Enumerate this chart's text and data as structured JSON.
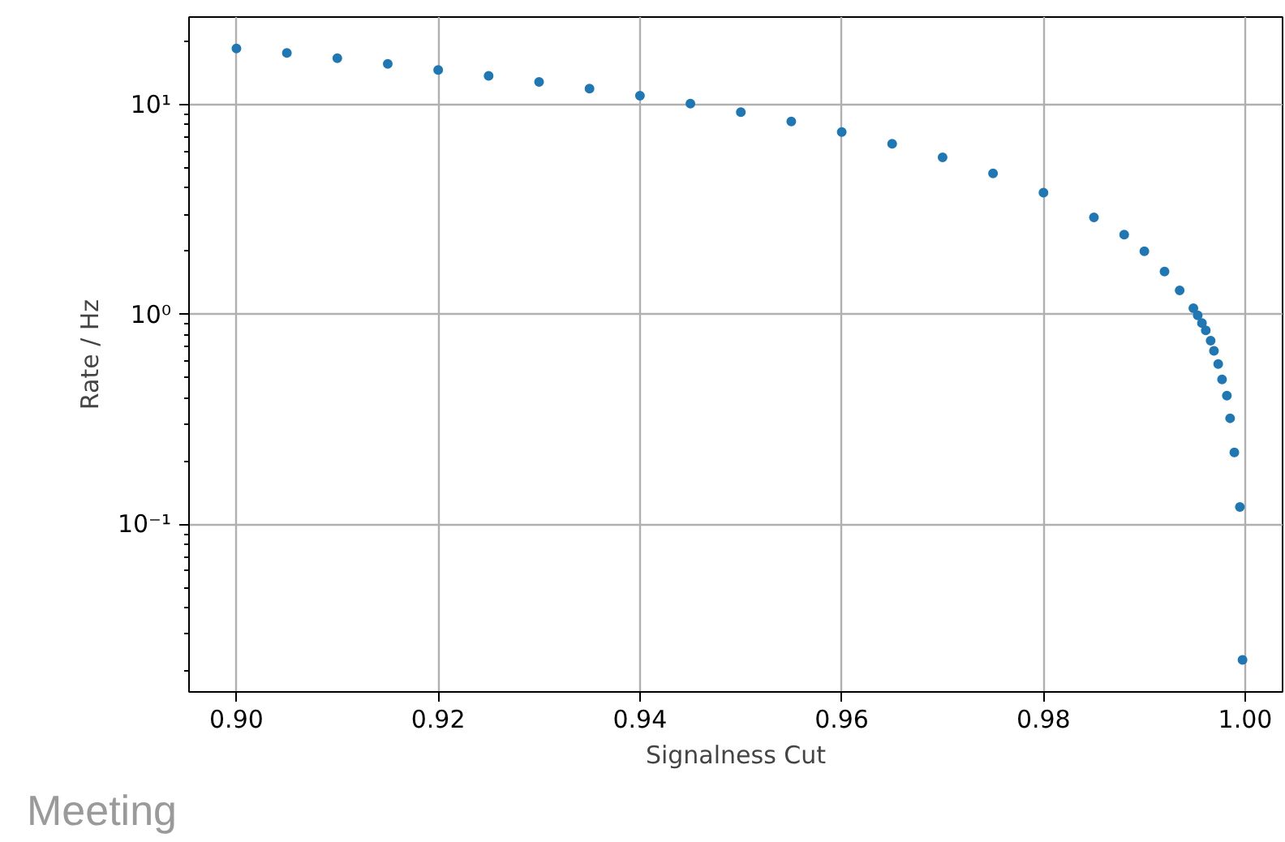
{
  "chart_data": {
    "type": "scatter",
    "xlabel": "Signalness Cut",
    "ylabel": "Rate / Hz",
    "annotations": [
      "Meeting"
    ],
    "x": [
      0.9,
      0.905,
      0.91,
      0.915,
      0.92,
      0.925,
      0.93,
      0.935,
      0.94,
      0.945,
      0.95,
      0.955,
      0.96,
      0.965,
      0.97,
      0.975,
      0.98,
      0.985,
      0.988,
      0.99,
      0.992,
      0.9935,
      0.99486,
      0.99529,
      0.99571,
      0.99609,
      0.99657,
      0.9969,
      0.99732,
      0.9977,
      0.99818,
      0.9985,
      0.99892,
      0.99947,
      0.99973
    ],
    "series": [
      {
        "color": "#1f77b4",
        "values": [
          18.5,
          17.6,
          16.6,
          15.6,
          14.6,
          13.7,
          12.8,
          11.9,
          11.0,
          10.1,
          9.2,
          8.3,
          7.4,
          6.5,
          5.6,
          4.7,
          3.8,
          2.9,
          2.4,
          2.0,
          1.6,
          1.3,
          1.07,
          0.99,
          0.91,
          0.84,
          0.75,
          0.67,
          0.58,
          0.49,
          0.41,
          0.32,
          0.22,
          0.121,
          0.0226
        ]
      }
    ],
    "log": "y",
    "marker": "circle",
    "grid": true,
    "xlim": [
      0.8953,
      1.0037
    ],
    "ylim": [
      0.0159,
      26.1
    ],
    "xticks": [
      {
        "value": 0.9,
        "label": "0.90"
      },
      {
        "value": 0.92,
        "label": "0.92"
      },
      {
        "value": 0.94,
        "label": "0.94"
      },
      {
        "value": 0.96,
        "label": "0.96"
      },
      {
        "value": 0.98,
        "label": "0.98"
      },
      {
        "value": 1.0,
        "label": "1.00"
      }
    ],
    "yticks": [
      {
        "value": 0.1,
        "label": "10⁻¹"
      },
      {
        "value": 1,
        "label": "10⁰"
      },
      {
        "value": 10,
        "label": "10¹"
      }
    ]
  }
}
